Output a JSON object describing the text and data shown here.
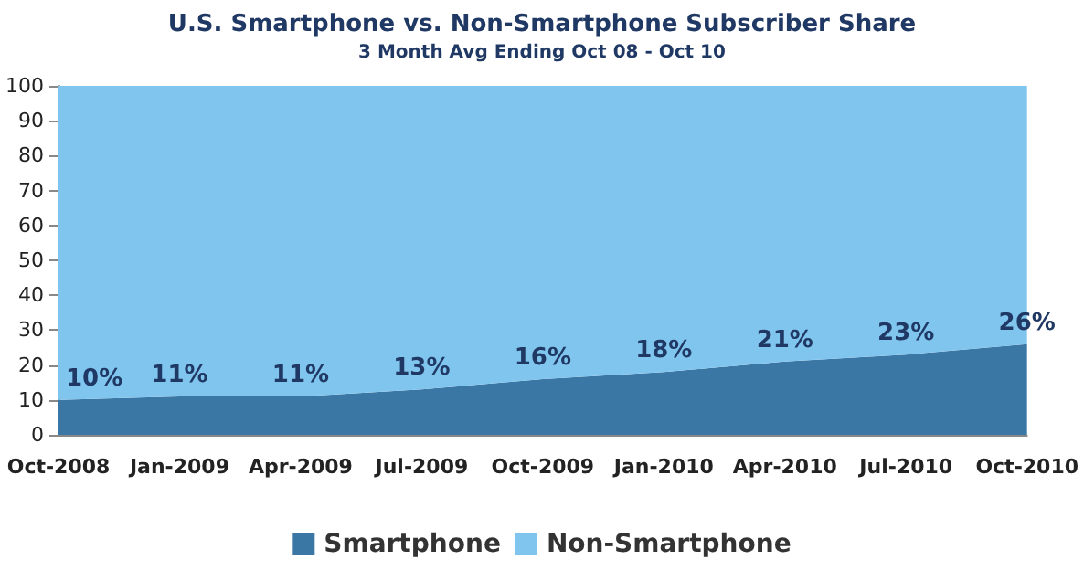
{
  "chart_data": {
    "type": "area",
    "title": "U.S. Smartphone vs. Non-Smartphone Subscriber Share",
    "subtitle": "3 Month Avg Ending Oct 08 - Oct 10",
    "categories": [
      "Oct-2008",
      "Jan-2009",
      "Apr-2009",
      "Jul-2009",
      "Oct-2009",
      "Jan-2010",
      "Apr-2010",
      "Jul-2010",
      "Oct-2010"
    ],
    "stacked": true,
    "series": [
      {
        "name": "Smartphone",
        "color": "#3b77a5",
        "values": [
          10,
          11,
          11,
          13,
          16,
          18,
          21,
          23,
          26
        ],
        "value_labels": [
          "10%",
          "11%",
          "11%",
          "13%",
          "16%",
          "18%",
          "21%",
          "23%",
          "26%"
        ]
      },
      {
        "name": "Non-Smartphone",
        "color": "#80c5ee",
        "values": [
          90,
          89,
          89,
          87,
          84,
          82,
          79,
          77,
          74
        ]
      }
    ],
    "ylim": [
      0,
      100
    ],
    "yticks": [
      0,
      10,
      20,
      30,
      40,
      50,
      60,
      70,
      80,
      90,
      100
    ],
    "legend": "bottom"
  }
}
